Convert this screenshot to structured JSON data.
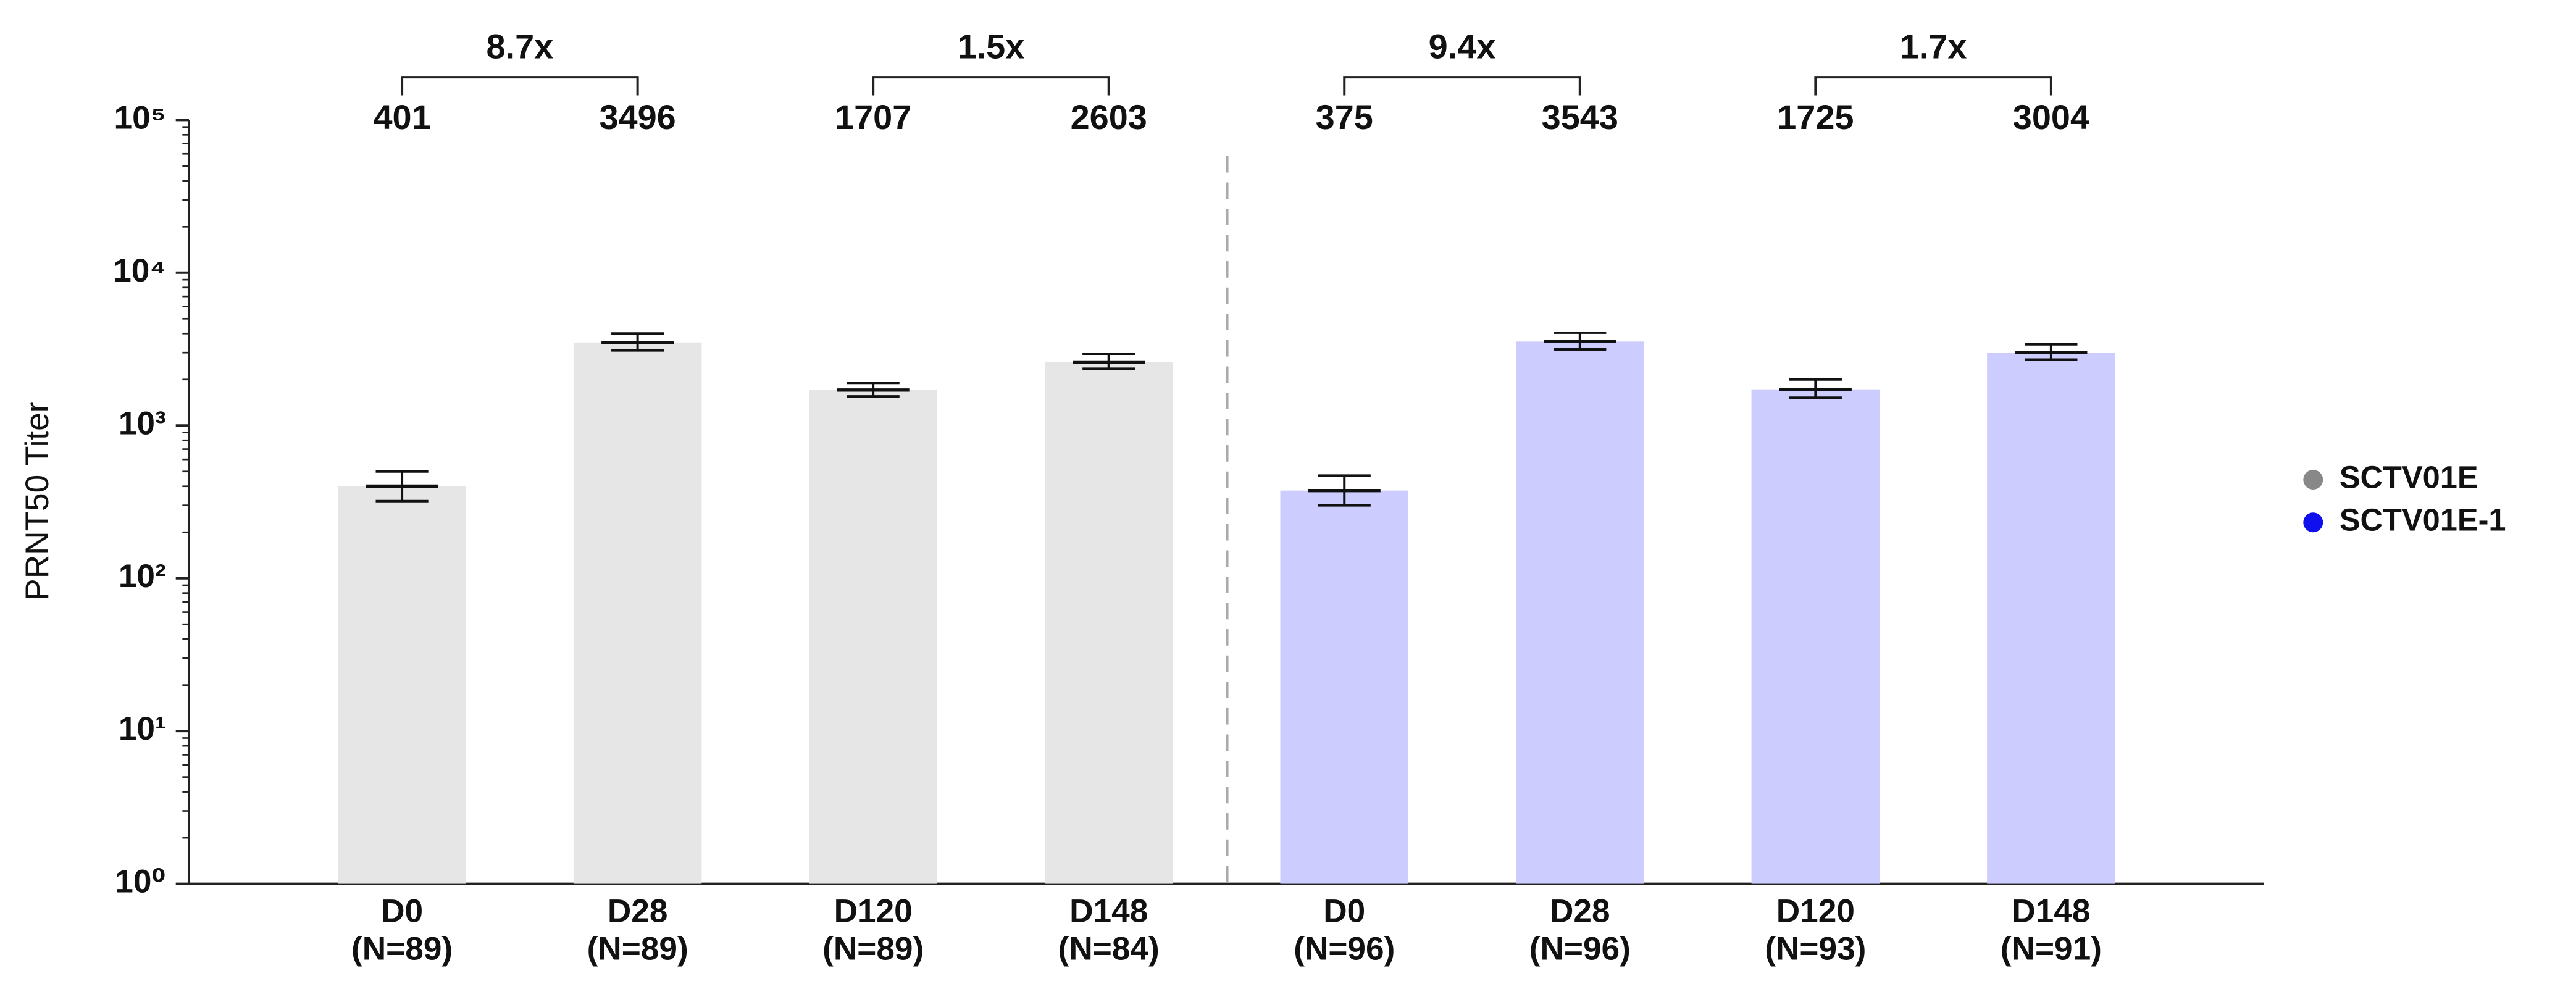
{
  "chart_data": {
    "type": "bar",
    "y_label": "PRNT50 Titer",
    "categories": [
      "D0",
      "D28",
      "D120",
      "D148",
      "D0",
      "D28",
      "D120",
      "D148"
    ],
    "n_labels": [
      "(N=89)",
      "(N=89)",
      "(N=89)",
      "(N=84)",
      "(N=96)",
      "(N=96)",
      "(N=93)",
      "(N=91)"
    ],
    "series": [
      {
        "name": "SCTV01E",
        "color": "#888888",
        "bar_color": "#e6e6e6",
        "values": [
          401,
          3496,
          1707,
          2603,
          null,
          null,
          null,
          null
        ],
        "error_low": [
          320,
          3100,
          1550,
          2350,
          null,
          null,
          null,
          null
        ],
        "error_high": [
          500,
          4000,
          1900,
          2950,
          null,
          null,
          null,
          null
        ]
      },
      {
        "name": "SCTV01E-1",
        "color": "#1010ee",
        "bar_color": "#ccccff",
        "values": [
          null,
          null,
          null,
          null,
          375,
          3543,
          1725,
          3004
        ],
        "error_low": [
          null,
          null,
          null,
          null,
          300,
          3150,
          1520,
          2700
        ],
        "error_high": [
          null,
          null,
          null,
          null,
          470,
          4050,
          2000,
          3400
        ]
      }
    ],
    "fold_changes": [
      "8.7x",
      "1.5x",
      "9.4x",
      "1.7x"
    ],
    "log_scale": true,
    "ylim": [
      1,
      100000
    ],
    "yticks": [
      {
        "value": 1,
        "label": "10⁰"
      },
      {
        "value": 10,
        "label": "10¹"
      },
      {
        "value": 100,
        "label": "10²"
      },
      {
        "value": 1000,
        "label": "10³"
      },
      {
        "value": 10000,
        "label": "10⁴"
      },
      {
        "value": 100000,
        "label": "10⁵"
      }
    ],
    "legend": "right"
  }
}
